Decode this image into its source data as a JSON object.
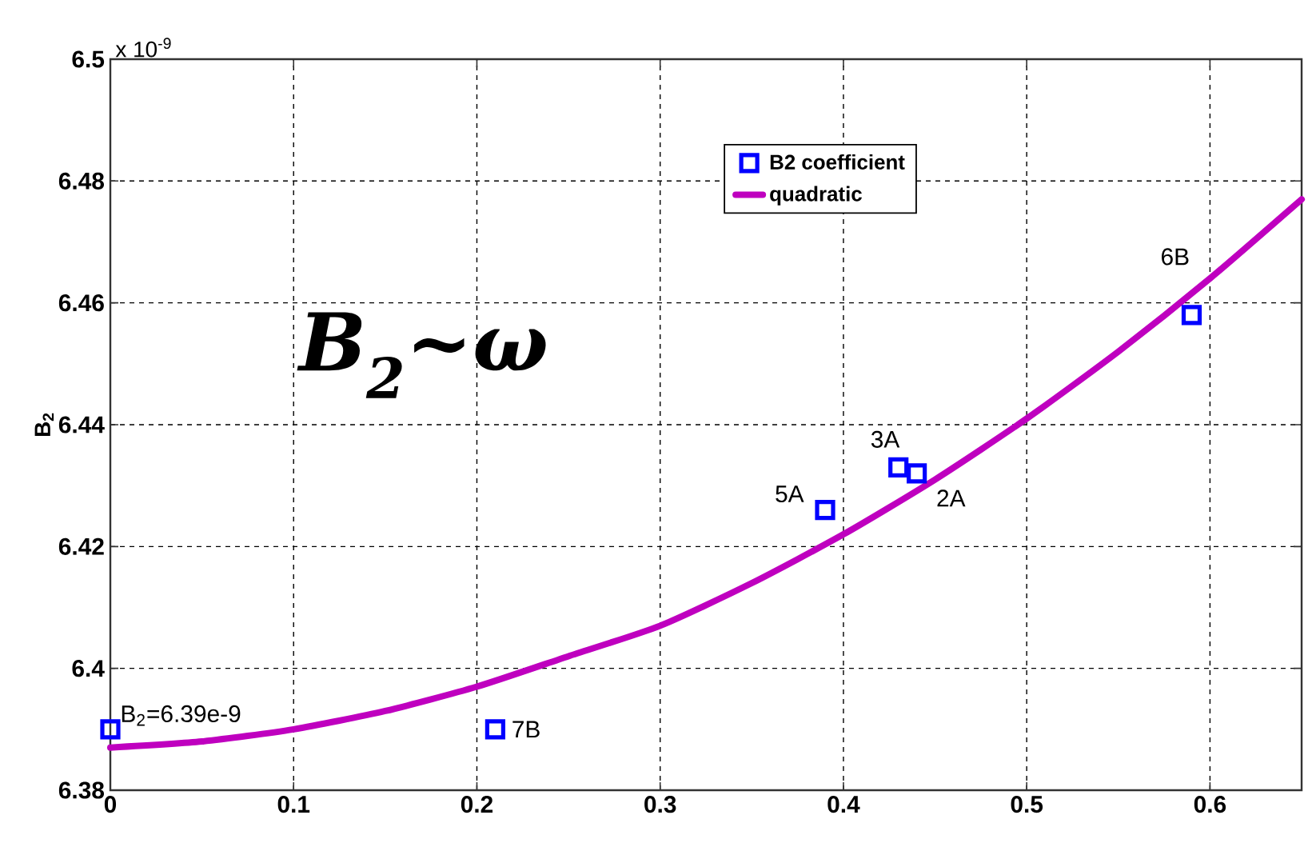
{
  "chart_data": {
    "type": "scatter",
    "ylabel": "B$_{2}$",
    "annotations": [
      "x 10$^{-9}$",
      "B$_{2}$~ω",
      {
        "text": "B$_{2}$=6.39e-9",
        "x": 0,
        "y": 6.39
      },
      {
        "text": "7B",
        "x": 0.21,
        "y": 6.39
      },
      {
        "text": "5A",
        "x": 0.39,
        "y": 6.426
      },
      {
        "text": "3A",
        "x": 0.43,
        "y": 6.433
      },
      {
        "text": "2A",
        "x": 0.44,
        "y": 6.432
      },
      {
        "text": "6B",
        "x": 0.59,
        "y": 6.458
      }
    ],
    "series": [
      {
        "name": "B2 coefficient",
        "color": "#0000ff",
        "marker": "square",
        "x": [
          0,
          0.21,
          0.39,
          0.43,
          0.44,
          0.59
        ],
        "values": [
          6.39,
          6.39,
          6.426,
          6.433,
          6.432,
          6.458
        ]
      },
      {
        "name": "quadratic",
        "type": "line",
        "color": "#bf00bf",
        "marker": "none",
        "line_style": "solid",
        "x": [
          0,
          0.05,
          0.1,
          0.15,
          0.2,
          0.25,
          0.3,
          0.35,
          0.4,
          0.45,
          0.5,
          0.55,
          0.6,
          0.65
        ],
        "values": [
          6.387,
          6.388,
          6.39,
          6.393,
          6.397,
          6.402,
          6.407,
          6.414,
          6.422,
          6.431,
          6.441,
          6.452,
          6.464,
          6.477
        ]
      }
    ],
    "xlim": [
      0,
      0.65
    ],
    "ylim": [
      6.38,
      6.5
    ],
    "xticks": [
      0,
      0.1,
      0.2,
      0.3,
      0.4,
      0.5,
      0.6
    ],
    "yticks": [
      6.38,
      6.4,
      6.42,
      6.44,
      6.46,
      6.48,
      6.5
    ],
    "grid": true,
    "legend": "top"
  }
}
